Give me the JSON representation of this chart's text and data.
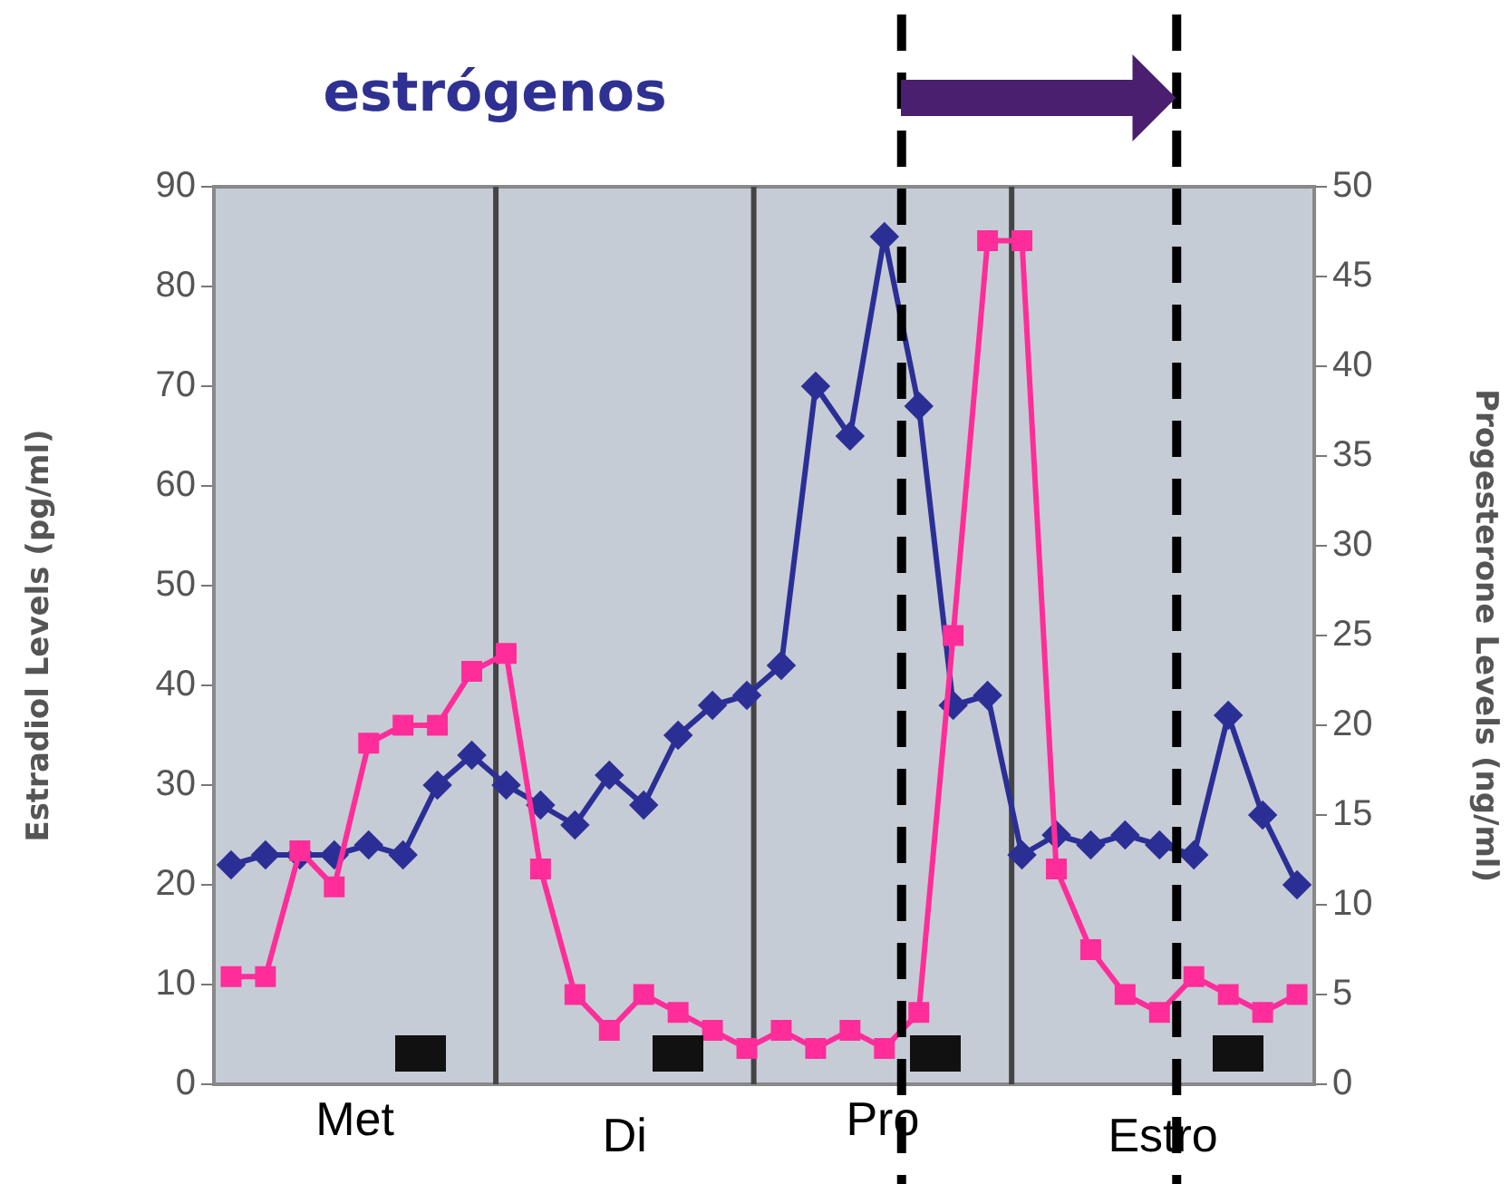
{
  "chart_data": {
    "type": "line",
    "title": "estrógenos",
    "ylabel": "Estradiol Levels (pg/ml)",
    "y2label": "Progesterone Levels (ng/ml)",
    "categories": [
      null,
      null,
      null,
      null,
      null,
      null,
      null,
      null,
      null,
      null,
      null,
      null,
      null,
      null,
      null,
      null,
      null,
      null,
      null,
      null,
      null,
      null,
      null,
      null,
      null,
      null,
      null,
      null,
      null,
      null,
      null,
      null
    ],
    "ylim": [
      0,
      90
    ],
    "yticks": [
      0,
      10,
      20,
      30,
      40,
      50,
      60,
      70,
      80,
      90
    ],
    "y2lim": [
      0,
      50
    ],
    "y2ticks": [
      0,
      5,
      10,
      15,
      20,
      25,
      30,
      35,
      40,
      45,
      50
    ],
    "series": [
      {
        "color": "#2b2f95",
        "marker": "diamond",
        "values": [
          22,
          23,
          23,
          23,
          24,
          23,
          30,
          33,
          30,
          28,
          26,
          31,
          28,
          35,
          38,
          39,
          42,
          70,
          65,
          85,
          68,
          38,
          39,
          23,
          25,
          24,
          25,
          24,
          23,
          37,
          27,
          20
        ]
      },
      {
        "color": "#ff2d9a",
        "marker": "square",
        "axis": "y2",
        "values": [
          6,
          6,
          13,
          11,
          19,
          20,
          20,
          23,
          24,
          12,
          5,
          3,
          5,
          4,
          3,
          2,
          3,
          2,
          3,
          2,
          4,
          25,
          47,
          47,
          12,
          7.5,
          5,
          4,
          6,
          5,
          4,
          5
        ]
      }
    ],
    "annotations": [
      "Met",
      "Di",
      "Pro",
      "Estro"
    ],
    "grid": false,
    "legend": false,
    "tick_labels": "y"
  }
}
